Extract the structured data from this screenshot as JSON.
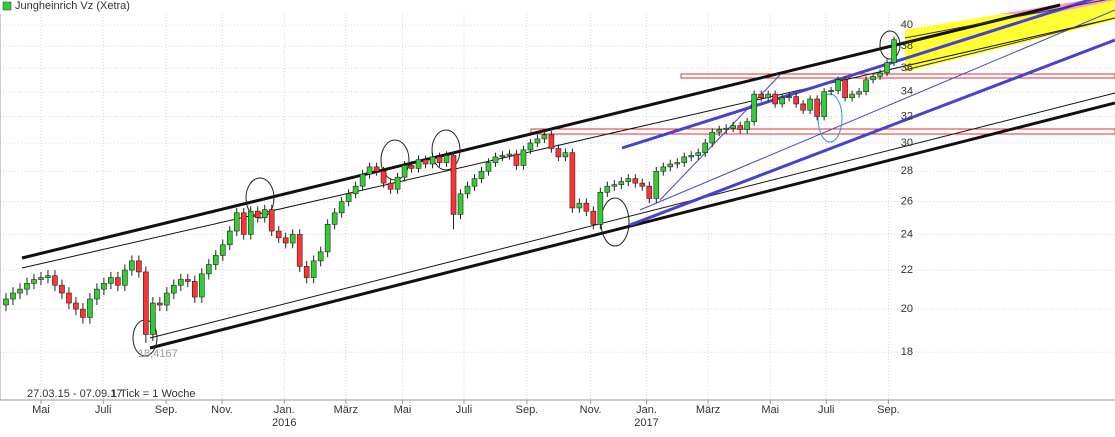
{
  "chart_data": {
    "type": "candlestick",
    "title": "Jungheinrich Vz (Xetra)",
    "legend_color": "#33cc33",
    "up_color": "#33cc33",
    "down_color": "#ff3333",
    "log_scale": true,
    "grid": true,
    "ylim": [
      16.1,
      41.1
    ],
    "yticks": [
      18,
      20,
      22,
      24,
      26,
      28,
      30,
      32,
      34,
      36,
      38,
      40
    ],
    "xlim": [
      -0.858,
      158.6
    ],
    "xticks": [
      {
        "value": 5.0,
        "label": "Mai"
      },
      {
        "value": 13.9,
        "label": "Juli"
      },
      {
        "value": 22.9,
        "label": "Sep."
      },
      {
        "value": 30.9,
        "label": "Nov."
      },
      {
        "value": 39.8,
        "label": "Jan."
      },
      {
        "value": 48.6,
        "label": "März"
      },
      {
        "value": 56.7,
        "label": "Mai"
      },
      {
        "value": 65.5,
        "label": "Juli"
      },
      {
        "value": 74.5,
        "label": "Sep."
      },
      {
        "value": 83.6,
        "label": "Nov."
      },
      {
        "value": 91.6,
        "label": "Jan."
      },
      {
        "value": 100.4,
        "label": "März"
      },
      {
        "value": 109.3,
        "label": "Mai"
      },
      {
        "value": 117.3,
        "label": "Juli"
      },
      {
        "value": 126.2,
        "label": "Sep."
      }
    ],
    "year_labels": [
      {
        "value": 39.8,
        "label": "2016"
      },
      {
        "value": 91.6,
        "label": "2017"
      }
    ],
    "date_range": "27.03.15 - 07.09.17",
    "tick_note": "1 Tick = 1 Woche",
    "low_label": "18,4167",
    "open": [
      20.2,
      20.5,
      20.8,
      21.0,
      21.3,
      21.5,
      21.6,
      21.7,
      21.2,
      20.8,
      20.3,
      20.0,
      19.6,
      20.5,
      21.0,
      21.3,
      21.6,
      21.2,
      22.0,
      22.5,
      21.9,
      18.8,
      20.3,
      20.2,
      20.8,
      21.2,
      21.5,
      21.4,
      20.6,
      21.8,
      22.3,
      22.8,
      23.4,
      24.2,
      25.3,
      24.0,
      25.4,
      25.0,
      25.5,
      24.2,
      23.8,
      23.5,
      24.0,
      22.2,
      21.6,
      22.5,
      23.0,
      24.6,
      25.3,
      26.0,
      26.5,
      27.0,
      27.8,
      28.3,
      28.0,
      27.2,
      26.8,
      27.6,
      28.4,
      28.2,
      28.8,
      28.5,
      29.0,
      28.6,
      29.1,
      25.2,
      26.5,
      27.0,
      27.5,
      28.0,
      28.6,
      29.0,
      29.1,
      29.2,
      28.4,
      29.5,
      30.0,
      30.3,
      30.6,
      29.6,
      29.0,
      29.3,
      25.6,
      25.9,
      25.4,
      24.6,
      26.6,
      27.0,
      27.1,
      27.3,
      27.5,
      27.2,
      27.0,
      26.2,
      28.0,
      28.3,
      28.5,
      28.6,
      29.0,
      29.1,
      29.3,
      30.0,
      30.8,
      31.0,
      31.1,
      31.3,
      31.0,
      31.6,
      33.8,
      33.5,
      33.8,
      33.0,
      33.5,
      33.6,
      33.0,
      32.5,
      33.4,
      32.0,
      34.0,
      34.1,
      35.0,
      33.5,
      33.8,
      34.0,
      35.0,
      35.3,
      35.6,
      36.5
    ],
    "high": [
      20.8,
      21.1,
      21.3,
      21.6,
      21.8,
      21.9,
      22.0,
      22.0,
      21.5,
      21.1,
      20.6,
      20.3,
      20.8,
      21.3,
      21.6,
      21.9,
      21.9,
      22.3,
      22.8,
      22.8,
      22.2,
      20.6,
      20.6,
      21.1,
      21.5,
      21.8,
      21.8,
      21.7,
      22.1,
      22.6,
      23.1,
      23.7,
      24.5,
      25.6,
      25.6,
      25.7,
      25.7,
      25.8,
      25.8,
      24.5,
      24.1,
      24.3,
      24.3,
      22.5,
      22.8,
      23.3,
      24.9,
      25.6,
      26.3,
      26.8,
      27.3,
      28.1,
      28.6,
      28.6,
      28.3,
      27.5,
      27.9,
      28.7,
      28.7,
      29.1,
      29.1,
      29.3,
      29.3,
      29.4,
      29.4,
      26.8,
      27.3,
      27.8,
      28.3,
      28.9,
      29.3,
      29.4,
      29.5,
      29.5,
      29.8,
      30.3,
      30.6,
      30.9,
      30.9,
      29.9,
      29.6,
      29.6,
      26.2,
      26.2,
      25.7,
      26.9,
      27.3,
      27.4,
      27.6,
      27.8,
      27.8,
      27.5,
      27.3,
      28.3,
      28.6,
      28.8,
      28.9,
      29.3,
      29.4,
      29.6,
      30.3,
      31.1,
      31.3,
      31.4,
      31.6,
      31.6,
      31.9,
      34.1,
      34.1,
      34.1,
      34.1,
      33.8,
      33.9,
      33.9,
      33.3,
      33.7,
      33.7,
      34.3,
      34.4,
      35.3,
      35.3,
      34.1,
      34.3,
      35.3,
      35.6,
      35.9,
      36.8,
      38.9
    ],
    "low": [
      19.9,
      20.2,
      20.5,
      20.7,
      21.0,
      21.2,
      21.3,
      20.9,
      20.5,
      20.0,
      19.7,
      19.3,
      19.3,
      20.2,
      20.7,
      21.0,
      20.9,
      20.9,
      21.7,
      21.6,
      18.4167,
      18.5,
      19.9,
      19.9,
      20.5,
      20.9,
      21.1,
      20.3,
      20.3,
      21.5,
      22.0,
      22.5,
      23.1,
      23.9,
      23.7,
      23.7,
      24.7,
      24.7,
      23.9,
      23.5,
      23.2,
      23.2,
      21.9,
      21.3,
      21.3,
      22.2,
      22.7,
      24.3,
      25.0,
      25.7,
      26.2,
      26.7,
      27.5,
      27.7,
      26.9,
      26.5,
      26.5,
      27.3,
      27.9,
      27.9,
      28.2,
      28.2,
      28.3,
      28.3,
      24.3,
      24.9,
      26.2,
      26.7,
      27.2,
      27.7,
      28.3,
      28.7,
      28.8,
      28.1,
      28.1,
      29.2,
      29.7,
      30.0,
      29.3,
      28.7,
      28.7,
      25.3,
      25.3,
      25.1,
      24.3,
      24.3,
      26.3,
      26.7,
      26.8,
      27.0,
      26.9,
      26.7,
      25.9,
      25.9,
      27.7,
      28.0,
      28.2,
      28.3,
      28.7,
      28.8,
      29.0,
      29.7,
      30.5,
      30.7,
      30.8,
      30.7,
      30.7,
      31.3,
      33.2,
      33.2,
      32.7,
      32.7,
      33.2,
      32.7,
      32.2,
      32.2,
      31.7,
      31.7,
      33.7,
      33.8,
      33.2,
      33.2,
      33.5,
      33.7,
      34.7,
      35.0,
      35.3,
      36.2
    ],
    "close": [
      20.5,
      20.8,
      21.0,
      21.3,
      21.5,
      21.6,
      21.7,
      21.2,
      20.8,
      20.3,
      20.0,
      19.6,
      20.5,
      21.0,
      21.3,
      21.6,
      21.2,
      22.0,
      22.5,
      21.9,
      18.8,
      20.3,
      20.2,
      20.8,
      21.2,
      21.5,
      21.4,
      20.6,
      21.8,
      22.3,
      22.8,
      23.4,
      24.2,
      25.3,
      24.0,
      25.4,
      25.0,
      25.5,
      24.2,
      23.8,
      23.5,
      24.0,
      22.2,
      21.6,
      22.5,
      23.0,
      24.6,
      25.3,
      26.0,
      26.5,
      27.0,
      27.8,
      28.3,
      28.0,
      27.2,
      26.8,
      27.6,
      28.4,
      28.2,
      28.8,
      28.5,
      29.0,
      28.6,
      29.1,
      25.2,
      26.5,
      27.0,
      27.5,
      28.0,
      28.6,
      29.0,
      29.1,
      29.2,
      28.4,
      29.5,
      30.0,
      30.3,
      30.6,
      29.6,
      29.0,
      29.3,
      25.6,
      25.9,
      25.4,
      24.6,
      26.6,
      27.0,
      27.1,
      27.3,
      27.5,
      27.2,
      27.0,
      26.2,
      28.0,
      28.3,
      28.5,
      28.6,
      29.0,
      29.1,
      29.3,
      30.0,
      30.8,
      31.0,
      31.1,
      31.3,
      31.0,
      31.6,
      33.8,
      33.5,
      33.8,
      33.0,
      33.5,
      33.6,
      33.0,
      32.5,
      33.4,
      32.0,
      34.0,
      34.1,
      35.0,
      33.5,
      33.8,
      34.0,
      35.0,
      35.3,
      35.6,
      36.5,
      38.6
    ]
  }
}
